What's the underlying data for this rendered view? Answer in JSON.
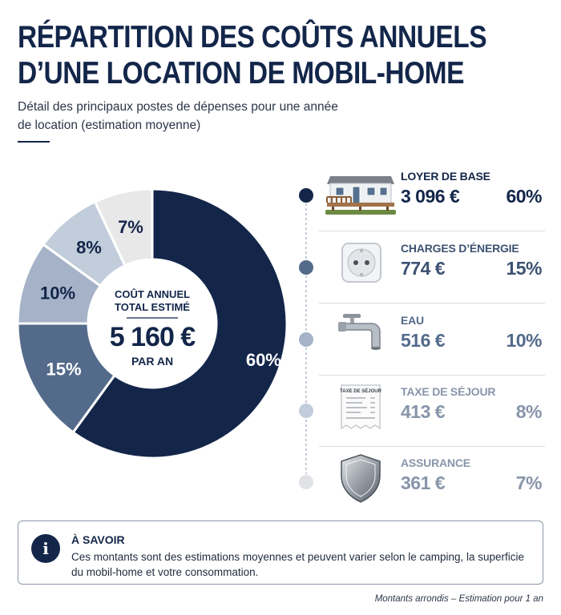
{
  "header": {
    "title_line1": "RÉPARTITION DES COÛTS ANNUELS",
    "title_line2": "D’UNE LOCATION DE MOBIL-HOME",
    "subtitle": "Détail des principaux postes de dépenses pour une année de location (estimation moyenne)"
  },
  "center": {
    "label": "COÛT ANNUEL TOTAL ESTIMÉ",
    "value": "5 160 €",
    "sub": "PAR AN"
  },
  "chart_data": {
    "type": "pie",
    "title": "RÉPARTITION DES COÛTS ANNUELS D’UNE LOCATION DE MOBIL-HOME",
    "donut": true,
    "unit": "€",
    "total": 5160,
    "categories": [
      "LOYER DE BASE",
      "CHARGES D’ÉNERGIE",
      "EAU",
      "TAXE DE SÉJOUR",
      "ASSURANCE"
    ],
    "values": [
      3096,
      774,
      516,
      413,
      361
    ],
    "percents": [
      60,
      15,
      10,
      8,
      7
    ],
    "percent_labels": [
      "60%",
      "15%",
      "10%",
      "8%",
      "7%"
    ],
    "amount_labels": [
      "3 096 €",
      "774 €",
      "516 €",
      "413 €",
      "361 €"
    ],
    "colors": [
      "#13264a",
      "#536a8a",
      "#a5b2c8",
      "#c2cddb",
      "#e8e8e9"
    ],
    "label_colors": [
      "#ffffff",
      "#ffffff",
      "#13264a",
      "#13264a",
      "#13264a"
    ],
    "text_colors": [
      "#13264a",
      "#3d5272",
      "#536a8a",
      "#8895aa",
      "#8895aa"
    ],
    "icons": [
      "mobile-home-icon",
      "power-socket-icon",
      "water-tap-icon",
      "receipt-icon",
      "shield-icon"
    ],
    "receipt_caption": "TAXE DE SÉJOUR"
  },
  "info": {
    "heading": "À SAVOIR",
    "text": "Ces montants sont des estimations moyennes et peuvent varier selon le camping, la superficie du mobil-home et votre consommation."
  },
  "footnote": "Montants arrondis – Estimation pour 1 an"
}
